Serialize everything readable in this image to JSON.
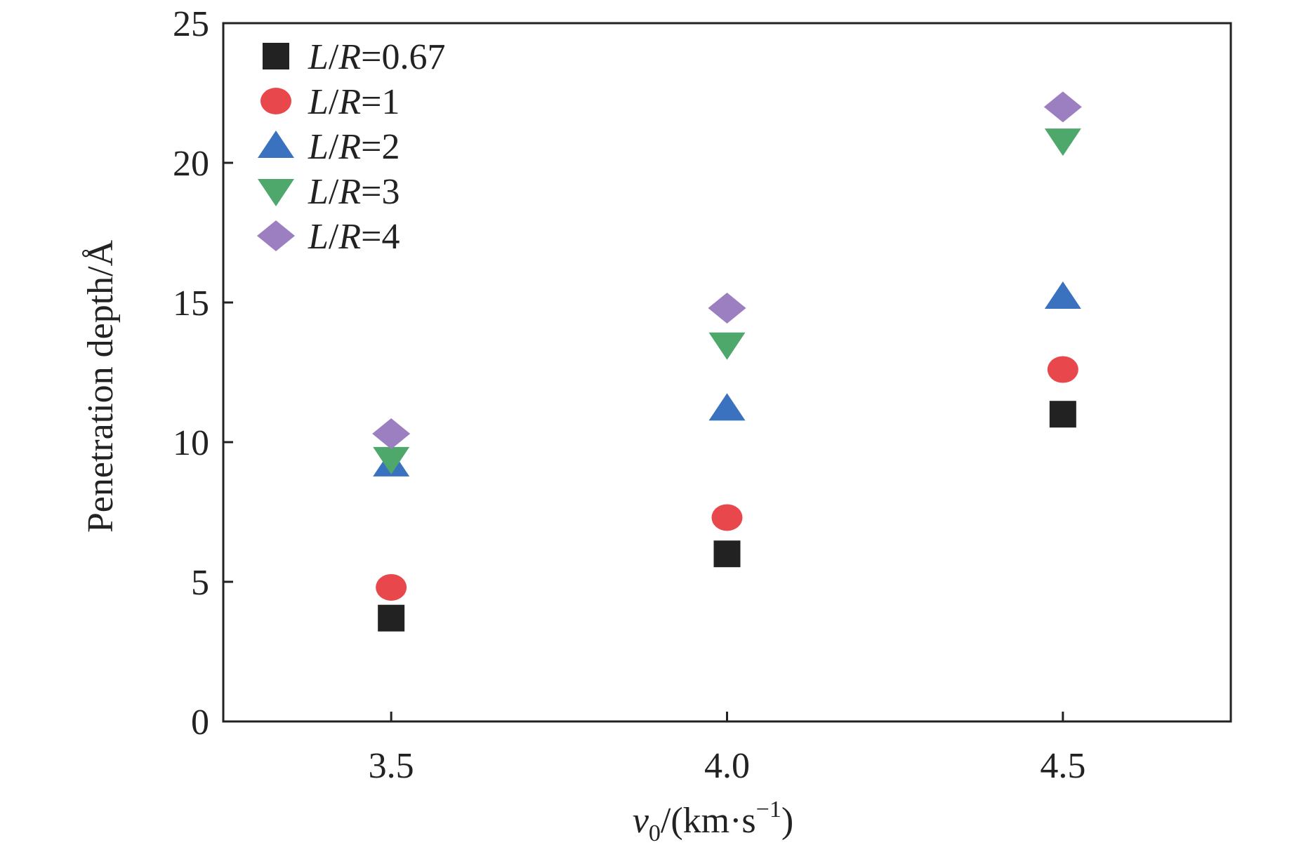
{
  "chart_data": {
    "type": "scatter",
    "title": "",
    "xlabel": {
      "var": "v",
      "sub": "0",
      "unit_open": "/(km·s",
      "sup": "−1",
      "unit_close": ")"
    },
    "ylabel": "Penetration depth/Å",
    "xlim": [
      3.25,
      4.75
    ],
    "ylim": [
      0,
      25
    ],
    "x_ticks": [
      3.5,
      4.0,
      4.5
    ],
    "x_tick_labels": [
      "3.5",
      "4.0",
      "4.5"
    ],
    "y_ticks": [
      0,
      5,
      10,
      15,
      20,
      25
    ],
    "y_tick_labels": [
      "0",
      "5",
      "10",
      "15",
      "20",
      "25"
    ],
    "grid": false,
    "legend_position": "top-left",
    "series": [
      {
        "name": "L/R=0.67",
        "legend": {
          "L": "L",
          "slash": "/",
          "R": "R",
          "value": "=0.67"
        },
        "marker": "square",
        "color": "#222222",
        "x": [
          3.5,
          4.0,
          4.5
        ],
        "y": [
          3.7,
          6.0,
          11.0
        ]
      },
      {
        "name": "L/R=1",
        "legend": {
          "L": "L",
          "slash": "/",
          "R": "R",
          "value": "=1"
        },
        "marker": "circle",
        "color": "#e8474c",
        "x": [
          3.5,
          4.0,
          4.5
        ],
        "y": [
          4.8,
          7.3,
          12.6
        ]
      },
      {
        "name": "L/R=2",
        "legend": {
          "L": "L",
          "slash": "/",
          "R": "R",
          "value": "=2"
        },
        "marker": "triangle-up",
        "color": "#3a72bf",
        "x": [
          3.5,
          4.0,
          4.5
        ],
        "y": [
          9.2,
          11.2,
          15.2
        ]
      },
      {
        "name": "L/R=3",
        "legend": {
          "L": "L",
          "slash": "/",
          "R": "R",
          "value": "=3"
        },
        "marker": "triangle-down",
        "color": "#4ea86b",
        "x": [
          3.5,
          4.0,
          4.5
        ],
        "y": [
          9.4,
          13.5,
          20.8
        ]
      },
      {
        "name": "L/R=4",
        "legend": {
          "L": "L",
          "slash": "/",
          "R": "R",
          "value": "=4"
        },
        "marker": "diamond",
        "color": "#9b7fc0",
        "x": [
          3.5,
          4.0,
          4.5
        ],
        "y": [
          10.3,
          14.8,
          22.0
        ]
      }
    ]
  }
}
